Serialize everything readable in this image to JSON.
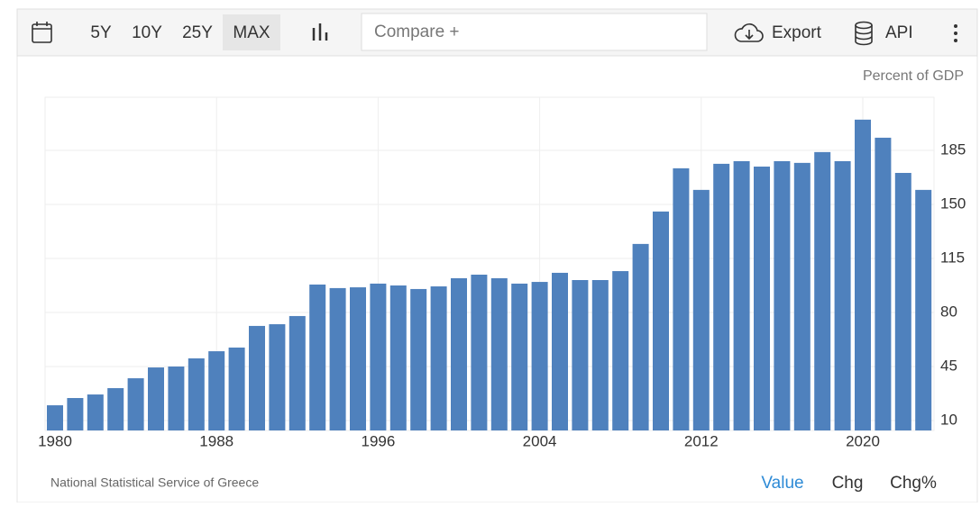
{
  "toolbar": {
    "ranges": [
      "5Y",
      "10Y",
      "25Y",
      "MAX"
    ],
    "compare": "Compare +",
    "export": "Export",
    "api": "API"
  },
  "footer": {
    "source": "National Statistical Service of Greece",
    "tabs": [
      "Value",
      "Chg",
      "Chg%"
    ]
  },
  "chart_data": {
    "type": "bar",
    "ylabel": "Percent of GDP",
    "color": "#4f81bd",
    "grid": true,
    "categories": [
      "1980",
      null,
      null,
      null,
      null,
      null,
      null,
      null,
      "1988",
      null,
      null,
      null,
      null,
      null,
      null,
      null,
      "1996",
      null,
      null,
      null,
      null,
      null,
      null,
      null,
      "2004",
      null,
      null,
      null,
      null,
      null,
      null,
      null,
      "2012",
      null,
      null,
      null,
      null,
      null,
      null,
      null,
      "2020",
      null,
      null,
      null
    ],
    "values": [
      19.9,
      24.6,
      26.9,
      31,
      37.4,
      44.4,
      45,
      50.3,
      54.9,
      57.3,
      71.3,
      72.4,
      77.7,
      98.1,
      95.8,
      96.3,
      98.7,
      97.5,
      95.2,
      96.9,
      102.2,
      104.5,
      102.2,
      98.7,
      99.8,
      105.7,
      101,
      101,
      106.8,
      124.4,
      145.4,
      173.4,
      159.4,
      176.3,
      178,
      174.5,
      178,
      176.9,
      183.9,
      178,
      204.9,
      193.2,
      170.4,
      159.4
    ],
    "ylim": [
      3.6,
      219.4
    ],
    "yticks": [
      10,
      45,
      80,
      115,
      150,
      185
    ]
  }
}
